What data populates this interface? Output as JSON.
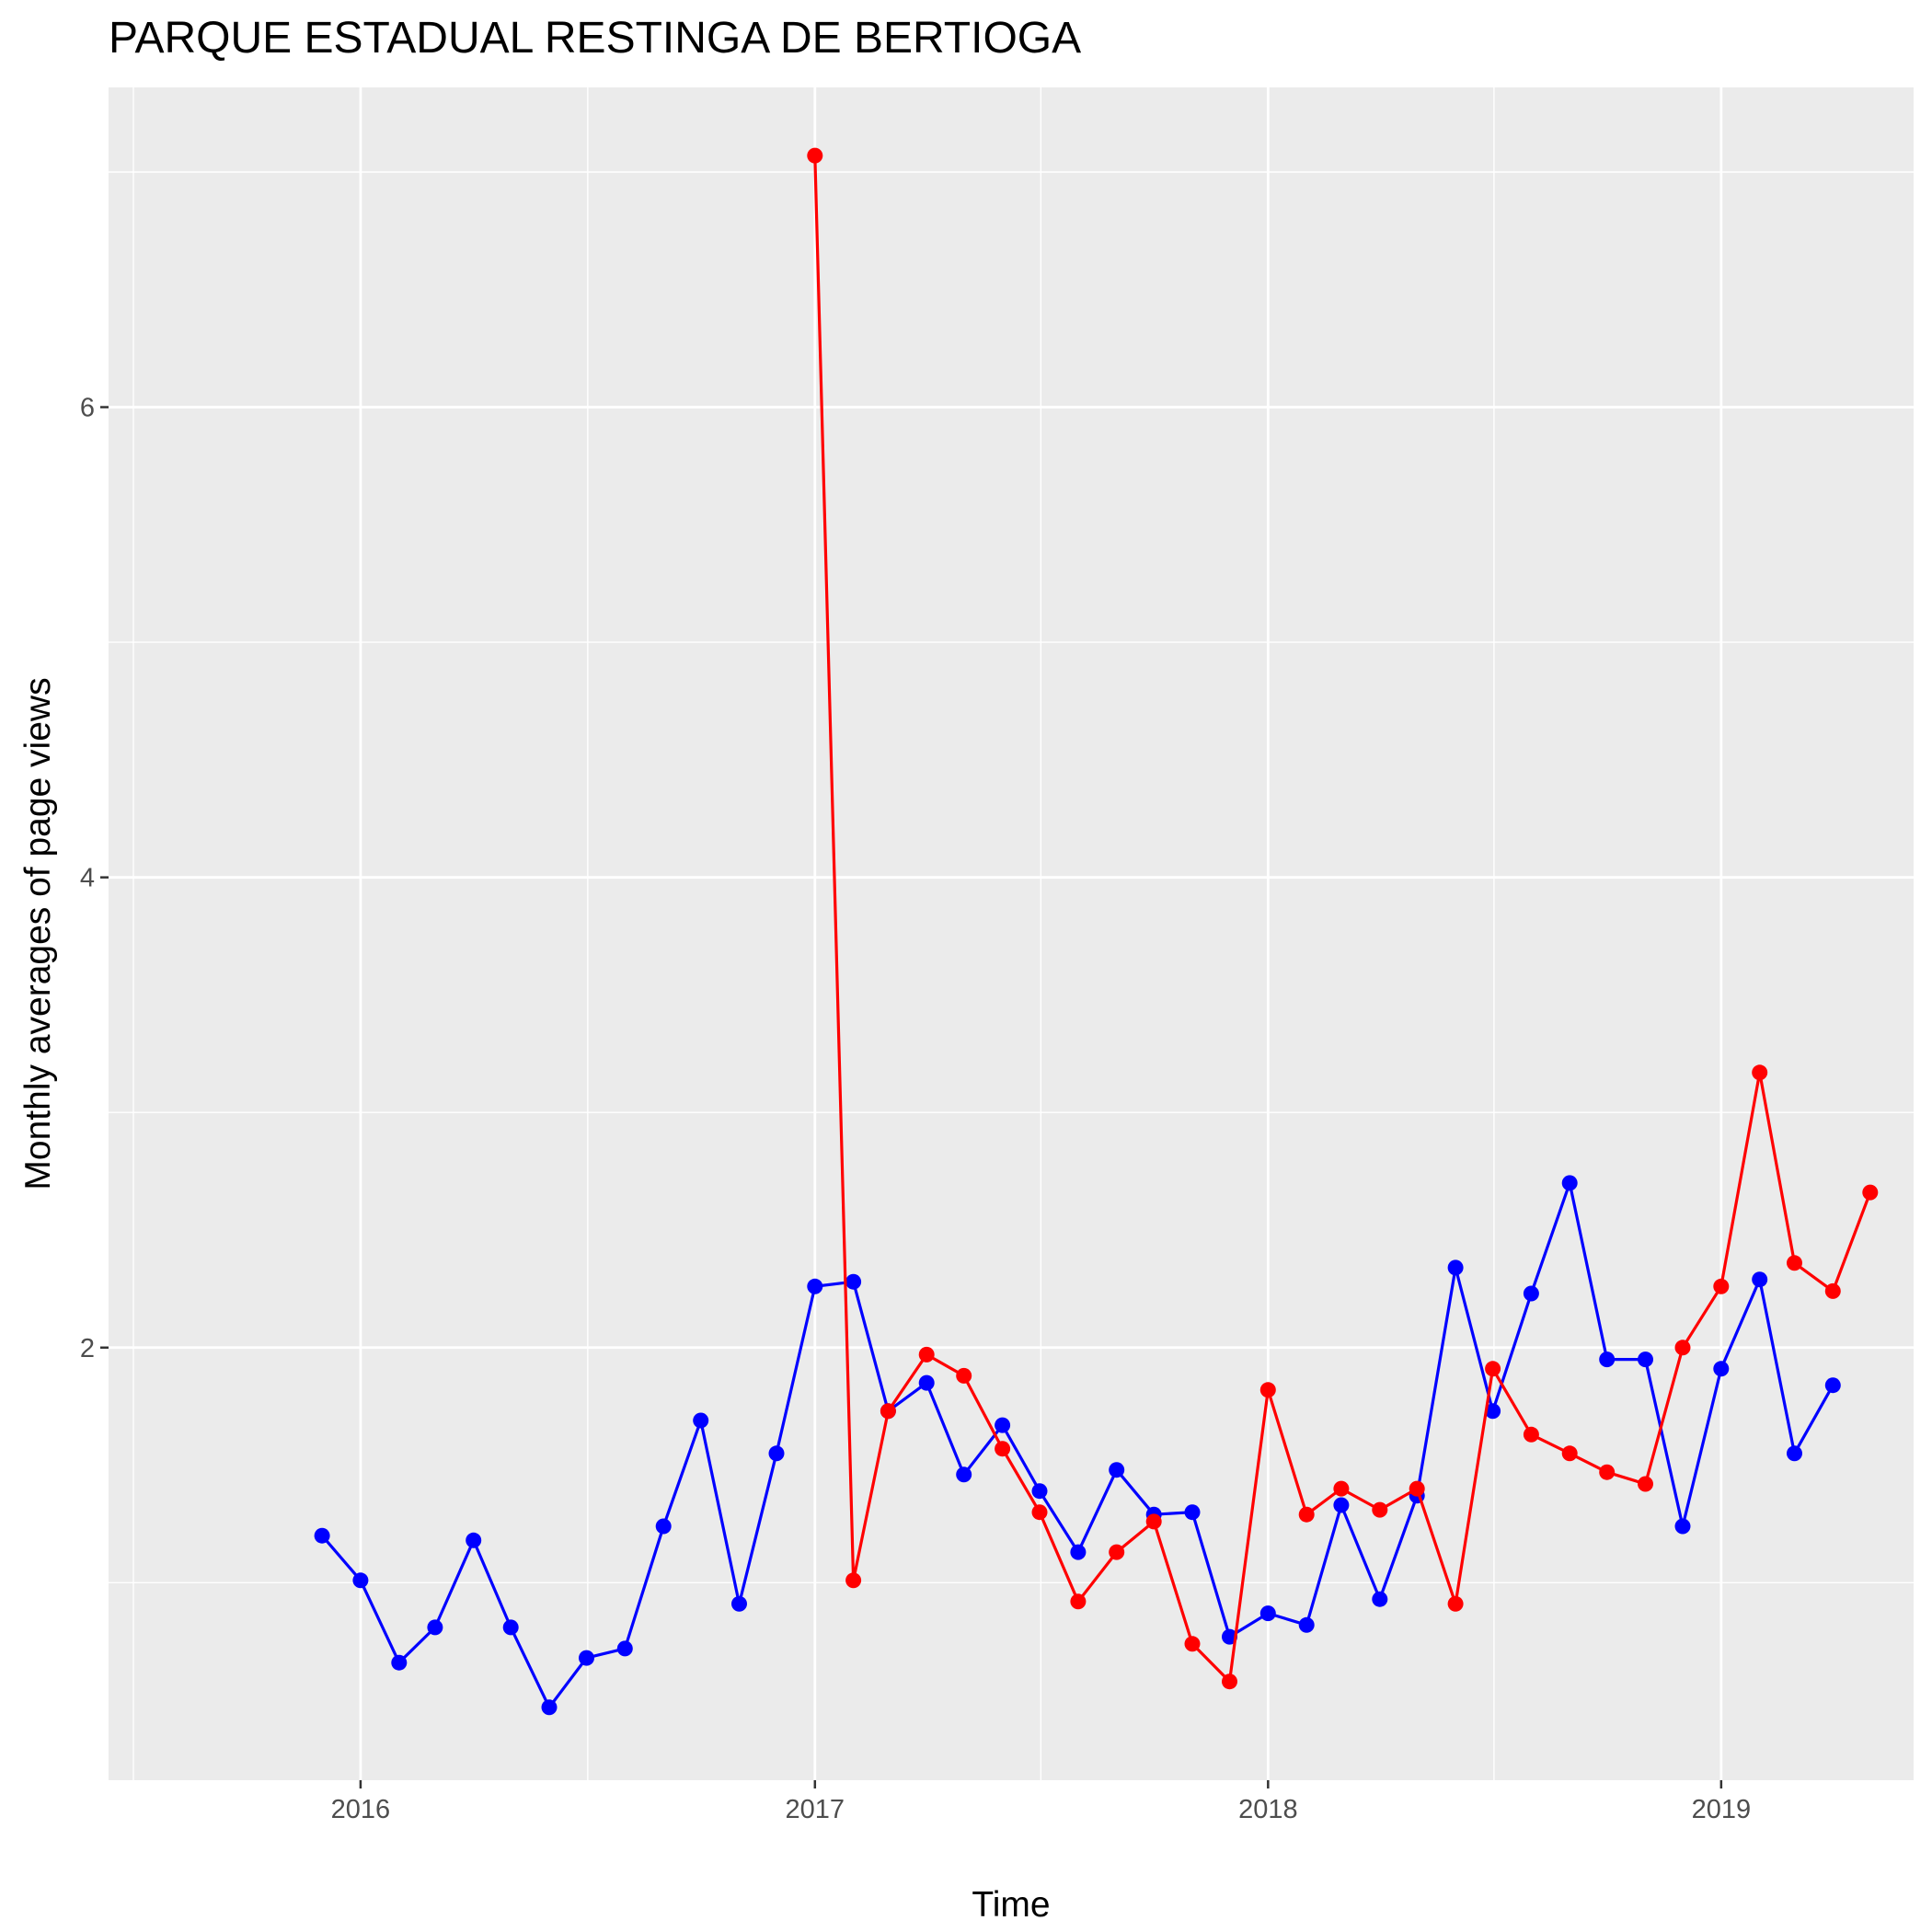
{
  "chart_data": {
    "type": "line",
    "title": "PARQUE ESTADUAL RESTINGA DE BERTIOGA",
    "xlabel": "Time",
    "ylabel": "Monthly averages of page views",
    "x_ticks": [
      "2016",
      "2017",
      "2018",
      "2019"
    ],
    "y_ticks": [
      "2",
      "4",
      "6"
    ],
    "xlim": [
      "2015-06-12",
      "2019-06-05"
    ],
    "ylim": [
      0.16,
      7.36
    ],
    "grid": true,
    "legend": "none",
    "background": "#ebebeb",
    "series": [
      {
        "color": "#0000ff",
        "points": [
          [
            "2015-12-01",
            1.2
          ],
          [
            "2016-01-01",
            1.01
          ],
          [
            "2016-02-01",
            0.66
          ],
          [
            "2016-03-01",
            0.81
          ],
          [
            "2016-04-01",
            1.18
          ],
          [
            "2016-05-01",
            0.81
          ],
          [
            "2016-06-01",
            0.47
          ],
          [
            "2016-07-01",
            0.68
          ],
          [
            "2016-08-01",
            0.72
          ],
          [
            "2016-09-01",
            1.24
          ],
          [
            "2016-10-01",
            1.69
          ],
          [
            "2016-11-01",
            0.91
          ],
          [
            "2016-12-01",
            1.55
          ],
          [
            "2017-01-01",
            2.26
          ],
          [
            "2017-02-01",
            2.28
          ],
          [
            "2017-03-01",
            1.73
          ],
          [
            "2017-04-01",
            1.85
          ],
          [
            "2017-05-01",
            1.46
          ],
          [
            "2017-06-01",
            1.67
          ],
          [
            "2017-07-01",
            1.39
          ],
          [
            "2017-08-01",
            1.13
          ],
          [
            "2017-09-01",
            1.48
          ],
          [
            "2017-10-01",
            1.29
          ],
          [
            "2017-11-01",
            1.3
          ],
          [
            "2017-12-01",
            0.77
          ],
          [
            "2018-01-01",
            0.87
          ],
          [
            "2018-02-01",
            0.82
          ],
          [
            "2018-03-01",
            1.33
          ],
          [
            "2018-04-01",
            0.93
          ],
          [
            "2018-05-01",
            1.37
          ],
          [
            "2018-06-01",
            2.34
          ],
          [
            "2018-07-01",
            1.73
          ],
          [
            "2018-08-01",
            2.23
          ],
          [
            "2018-09-01",
            2.7
          ],
          [
            "2018-10-01",
            1.95
          ],
          [
            "2018-11-01",
            1.95
          ],
          [
            "2018-12-01",
            1.24
          ],
          [
            "2019-01-01",
            1.91
          ],
          [
            "2019-02-01",
            2.29
          ],
          [
            "2019-03-01",
            1.55
          ],
          [
            "2019-04-01",
            1.84
          ]
        ]
      },
      {
        "color": "#ff0000",
        "points": [
          [
            "2017-01-01",
            7.07
          ],
          [
            "2017-02-01",
            1.01
          ],
          [
            "2017-03-01",
            1.73
          ],
          [
            "2017-04-01",
            1.97
          ],
          [
            "2017-05-01",
            1.88
          ],
          [
            "2017-06-01",
            1.57
          ],
          [
            "2017-07-01",
            1.3
          ],
          [
            "2017-08-01",
            0.92
          ],
          [
            "2017-09-01",
            1.13
          ],
          [
            "2017-10-01",
            1.26
          ],
          [
            "2017-11-01",
            0.74
          ],
          [
            "2017-12-01",
            0.58
          ],
          [
            "2018-01-01",
            1.82
          ],
          [
            "2018-02-01",
            1.29
          ],
          [
            "2018-03-01",
            1.4
          ],
          [
            "2018-04-01",
            1.31
          ],
          [
            "2018-05-01",
            1.4
          ],
          [
            "2018-06-01",
            0.91
          ],
          [
            "2018-07-01",
            1.91
          ],
          [
            "2018-08-01",
            1.63
          ],
          [
            "2018-09-01",
            1.55
          ],
          [
            "2018-10-01",
            1.47
          ],
          [
            "2018-11-01",
            1.42
          ],
          [
            "2018-12-01",
            2.0
          ],
          [
            "2019-01-01",
            2.26
          ],
          [
            "2019-02-01",
            3.17
          ],
          [
            "2019-03-01",
            2.36
          ],
          [
            "2019-04-01",
            2.24
          ],
          [
            "2019-05-01",
            2.66
          ]
        ]
      }
    ]
  }
}
